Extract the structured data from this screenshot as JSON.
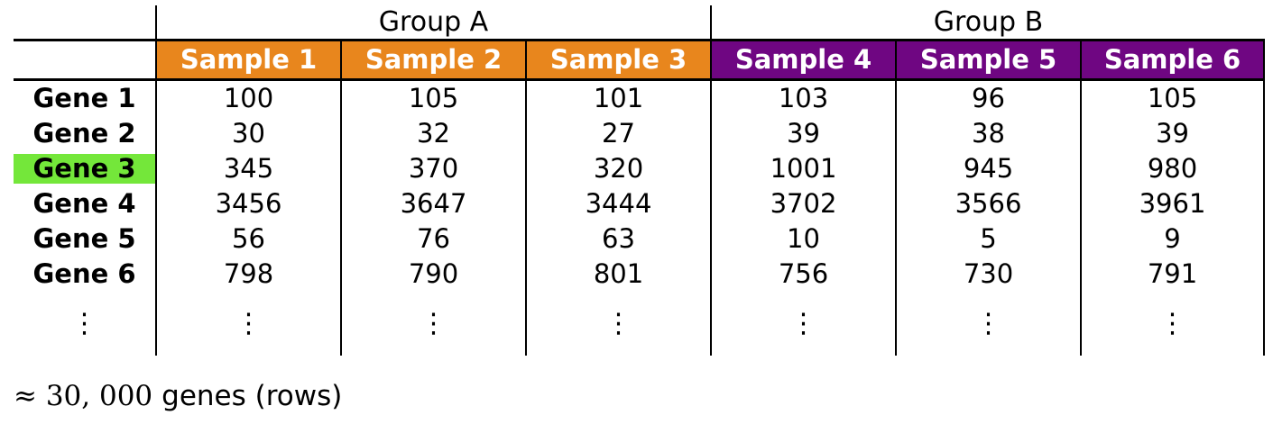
{
  "colors": {
    "group_a": "#E8861D",
    "group_b": "#6F0682",
    "highlight": "#74E73A",
    "border": "#000000"
  },
  "chart_data": {
    "type": "table",
    "column_groups": [
      "Group A",
      "Group B"
    ],
    "columns": [
      "Sample 1",
      "Sample 2",
      "Sample 3",
      "Sample 4",
      "Sample 5",
      "Sample 6"
    ],
    "rows": [
      {
        "label": "Gene 1",
        "values": [
          100,
          105,
          101,
          103,
          96,
          105
        ],
        "highlighted": false
      },
      {
        "label": "Gene 2",
        "values": [
          30,
          32,
          27,
          39,
          38,
          39
        ],
        "highlighted": false
      },
      {
        "label": "Gene 3",
        "values": [
          345,
          370,
          320,
          1001,
          945,
          980
        ],
        "highlighted": true
      },
      {
        "label": "Gene 4",
        "values": [
          3456,
          3647,
          3444,
          3702,
          3566,
          3961
        ],
        "highlighted": false
      },
      {
        "label": "Gene 5",
        "values": [
          56,
          76,
          63,
          10,
          5,
          9
        ],
        "highlighted": false
      },
      {
        "label": "Gene 6",
        "values": [
          798,
          790,
          801,
          756,
          730,
          791
        ],
        "highlighted": false
      }
    ],
    "highlighted_row": "Gene 3",
    "truncation_symbol": "⋮",
    "footnote": {
      "math": "≈ 30, 000",
      "text": "genes (rows)"
    }
  }
}
